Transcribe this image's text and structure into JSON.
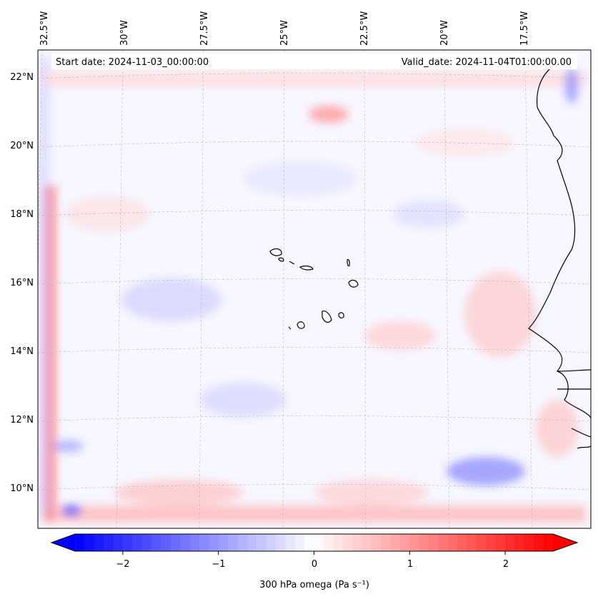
{
  "map": {
    "start_date": "Start date: 2024-11-03_00:00:00",
    "valid_date": "Valid_date: 2024-11-04T01:00:00.00",
    "lon_labels": [
      "32.5°W",
      "30°W",
      "27.5°W",
      "25°W",
      "22.5°W",
      "20°W",
      "17.5°W"
    ],
    "lat_labels": [
      "22°N",
      "20°N",
      "18°N",
      "16°N",
      "14°N",
      "12°N",
      "10°N"
    ],
    "field": "300 hPa omega",
    "colors": {
      "negative": "#0000ff",
      "neutral": "#ffffff",
      "positive": "#ff0000",
      "coast": "#000000",
      "grid": "#b0b0b0"
    }
  },
  "colorbar": {
    "label": "300 hPa omega (Pa s⁻¹)",
    "tick_labels": [
      "−2",
      "−1",
      "0",
      "1",
      "2"
    ],
    "tick_values": [
      -2,
      -1,
      0,
      1,
      2
    ],
    "range": [
      -2.5,
      2.5
    ],
    "extend": "both"
  }
}
